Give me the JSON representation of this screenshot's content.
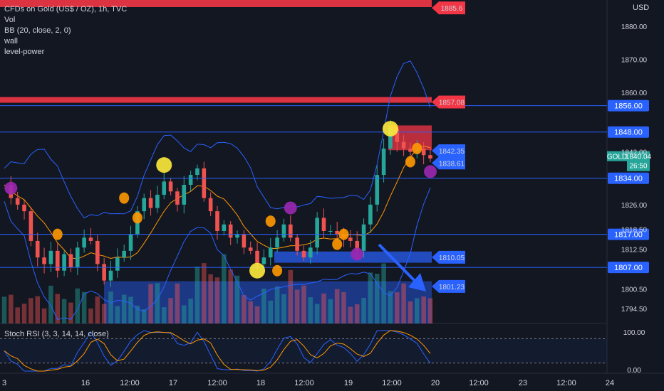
{
  "header": {
    "symbol_title": "CFDs on Gold (US$ / OZ), 1h, TVC",
    "indicators": [
      "Vol",
      "BB (20, close, 2, 0)",
      "wall",
      "level-power"
    ],
    "currency": "USD"
  },
  "price_badge": {
    "symbol": "GOLD",
    "price": "1840.04",
    "countdown": "26:50",
    "color": "#26a69a"
  },
  "rsi_panel": {
    "label": "Stoch RSI (3, 3, 14, 14, close)",
    "ticks": [
      "100.00",
      "0.00"
    ]
  },
  "colors": {
    "background": "#131722",
    "up": "#26a69a",
    "down": "#ef5350",
    "level_line": "#2962ff",
    "zone_blue": "#2962ff",
    "zone_red": "#f23645",
    "bb_line": "#2962ff",
    "basis_line": "#ff9800",
    "stoch_k": "#2962ff",
    "stoch_d": "#ff9800",
    "marker_yellow": "#ffeb3b",
    "marker_orange": "#ff9800",
    "marker_purple": "#9c27b0"
  },
  "chart_data": {
    "type": "candlestick",
    "title": "CFDs on Gold (US$ / OZ), 1h, TVC",
    "ylim": [
      1790,
      1888
    ],
    "y_ticks": [
      "1880.00",
      "1870.00",
      "1860.00",
      "1848.00",
      "1842.00",
      "1834.00",
      "1826.00",
      "1818.50",
      "1812.50",
      "1807.00",
      "1800.50",
      "1794.50"
    ],
    "x_ticks": [
      "3",
      "16",
      "12:00",
      "17",
      "12:00",
      "18",
      "12:00",
      "19",
      "12:00",
      "20",
      "12:00",
      "23",
      "12:00",
      "24"
    ],
    "close_path": [
      1832,
      1828,
      1826,
      1824,
      1815,
      1810,
      1808,
      1812,
      1806,
      1811,
      1807,
      1813,
      1816,
      1815,
      1808,
      1803,
      1806,
      1810,
      1812,
      1817,
      1824,
      1828,
      1825,
      1829,
      1833,
      1830,
      1826,
      1832,
      1835,
      1837,
      1828,
      1824,
      1818,
      1820,
      1816,
      1817,
      1813,
      1812,
      1808,
      1810,
      1813,
      1816,
      1820,
      1816,
      1812,
      1810,
      1813,
      1822,
      1818,
      1818,
      1817,
      1816,
      1815,
      1812,
      1820,
      1826,
      1835,
      1843,
      1849,
      1845,
      1843,
      1842,
      1843,
      1841,
      1840
    ],
    "levels": [
      {
        "price": 1856.0,
        "label": "1856.00"
      },
      {
        "price": 1848.0,
        "label": "1848.00"
      },
      {
        "price": 1834.0,
        "label": "1834.00"
      },
      {
        "price": 1817.0,
        "label": "1817.00"
      },
      {
        "price": 1807.0,
        "label": "1807.00"
      }
    ],
    "zone_labels": [
      {
        "price": 1885.6,
        "label": "1885.6",
        "color": "red"
      },
      {
        "price": 1857.08,
        "label": "1857.08",
        "color": "red"
      },
      {
        "price": 1842.35,
        "label": "1842.35",
        "color": "blue"
      },
      {
        "price": 1838.61,
        "label": "1838.61",
        "color": "blue"
      },
      {
        "price": 1810.05,
        "label": "1810.05",
        "color": "blue"
      },
      {
        "price": 1801.23,
        "label": "1801.23",
        "color": "blue"
      }
    ],
    "markers": [
      {
        "i": 1,
        "price": 1831,
        "color": "purple"
      },
      {
        "i": 8,
        "price": 1817,
        "color": "orange"
      },
      {
        "i": 18,
        "price": 1828,
        "color": "orange"
      },
      {
        "i": 20,
        "price": 1822,
        "color": "orange"
      },
      {
        "i": 24,
        "price": 1838,
        "color": "yellow"
      },
      {
        "i": 38,
        "price": 1806,
        "color": "yellow"
      },
      {
        "i": 40,
        "price": 1821,
        "color": "orange"
      },
      {
        "i": 41,
        "price": 1806,
        "color": "orange"
      },
      {
        "i": 43,
        "price": 1825,
        "color": "purple"
      },
      {
        "i": 51,
        "price": 1817,
        "color": "orange"
      },
      {
        "i": 50,
        "price": 1814,
        "color": "orange"
      },
      {
        "i": 53,
        "price": 1811,
        "color": "purple"
      },
      {
        "i": 58,
        "price": 1849,
        "color": "yellow"
      },
      {
        "i": 62,
        "price": 1843,
        "color": "orange"
      },
      {
        "i": 61,
        "price": 1839,
        "color": "orange"
      },
      {
        "i": 64,
        "price": 1836,
        "color": "purple"
      }
    ]
  }
}
